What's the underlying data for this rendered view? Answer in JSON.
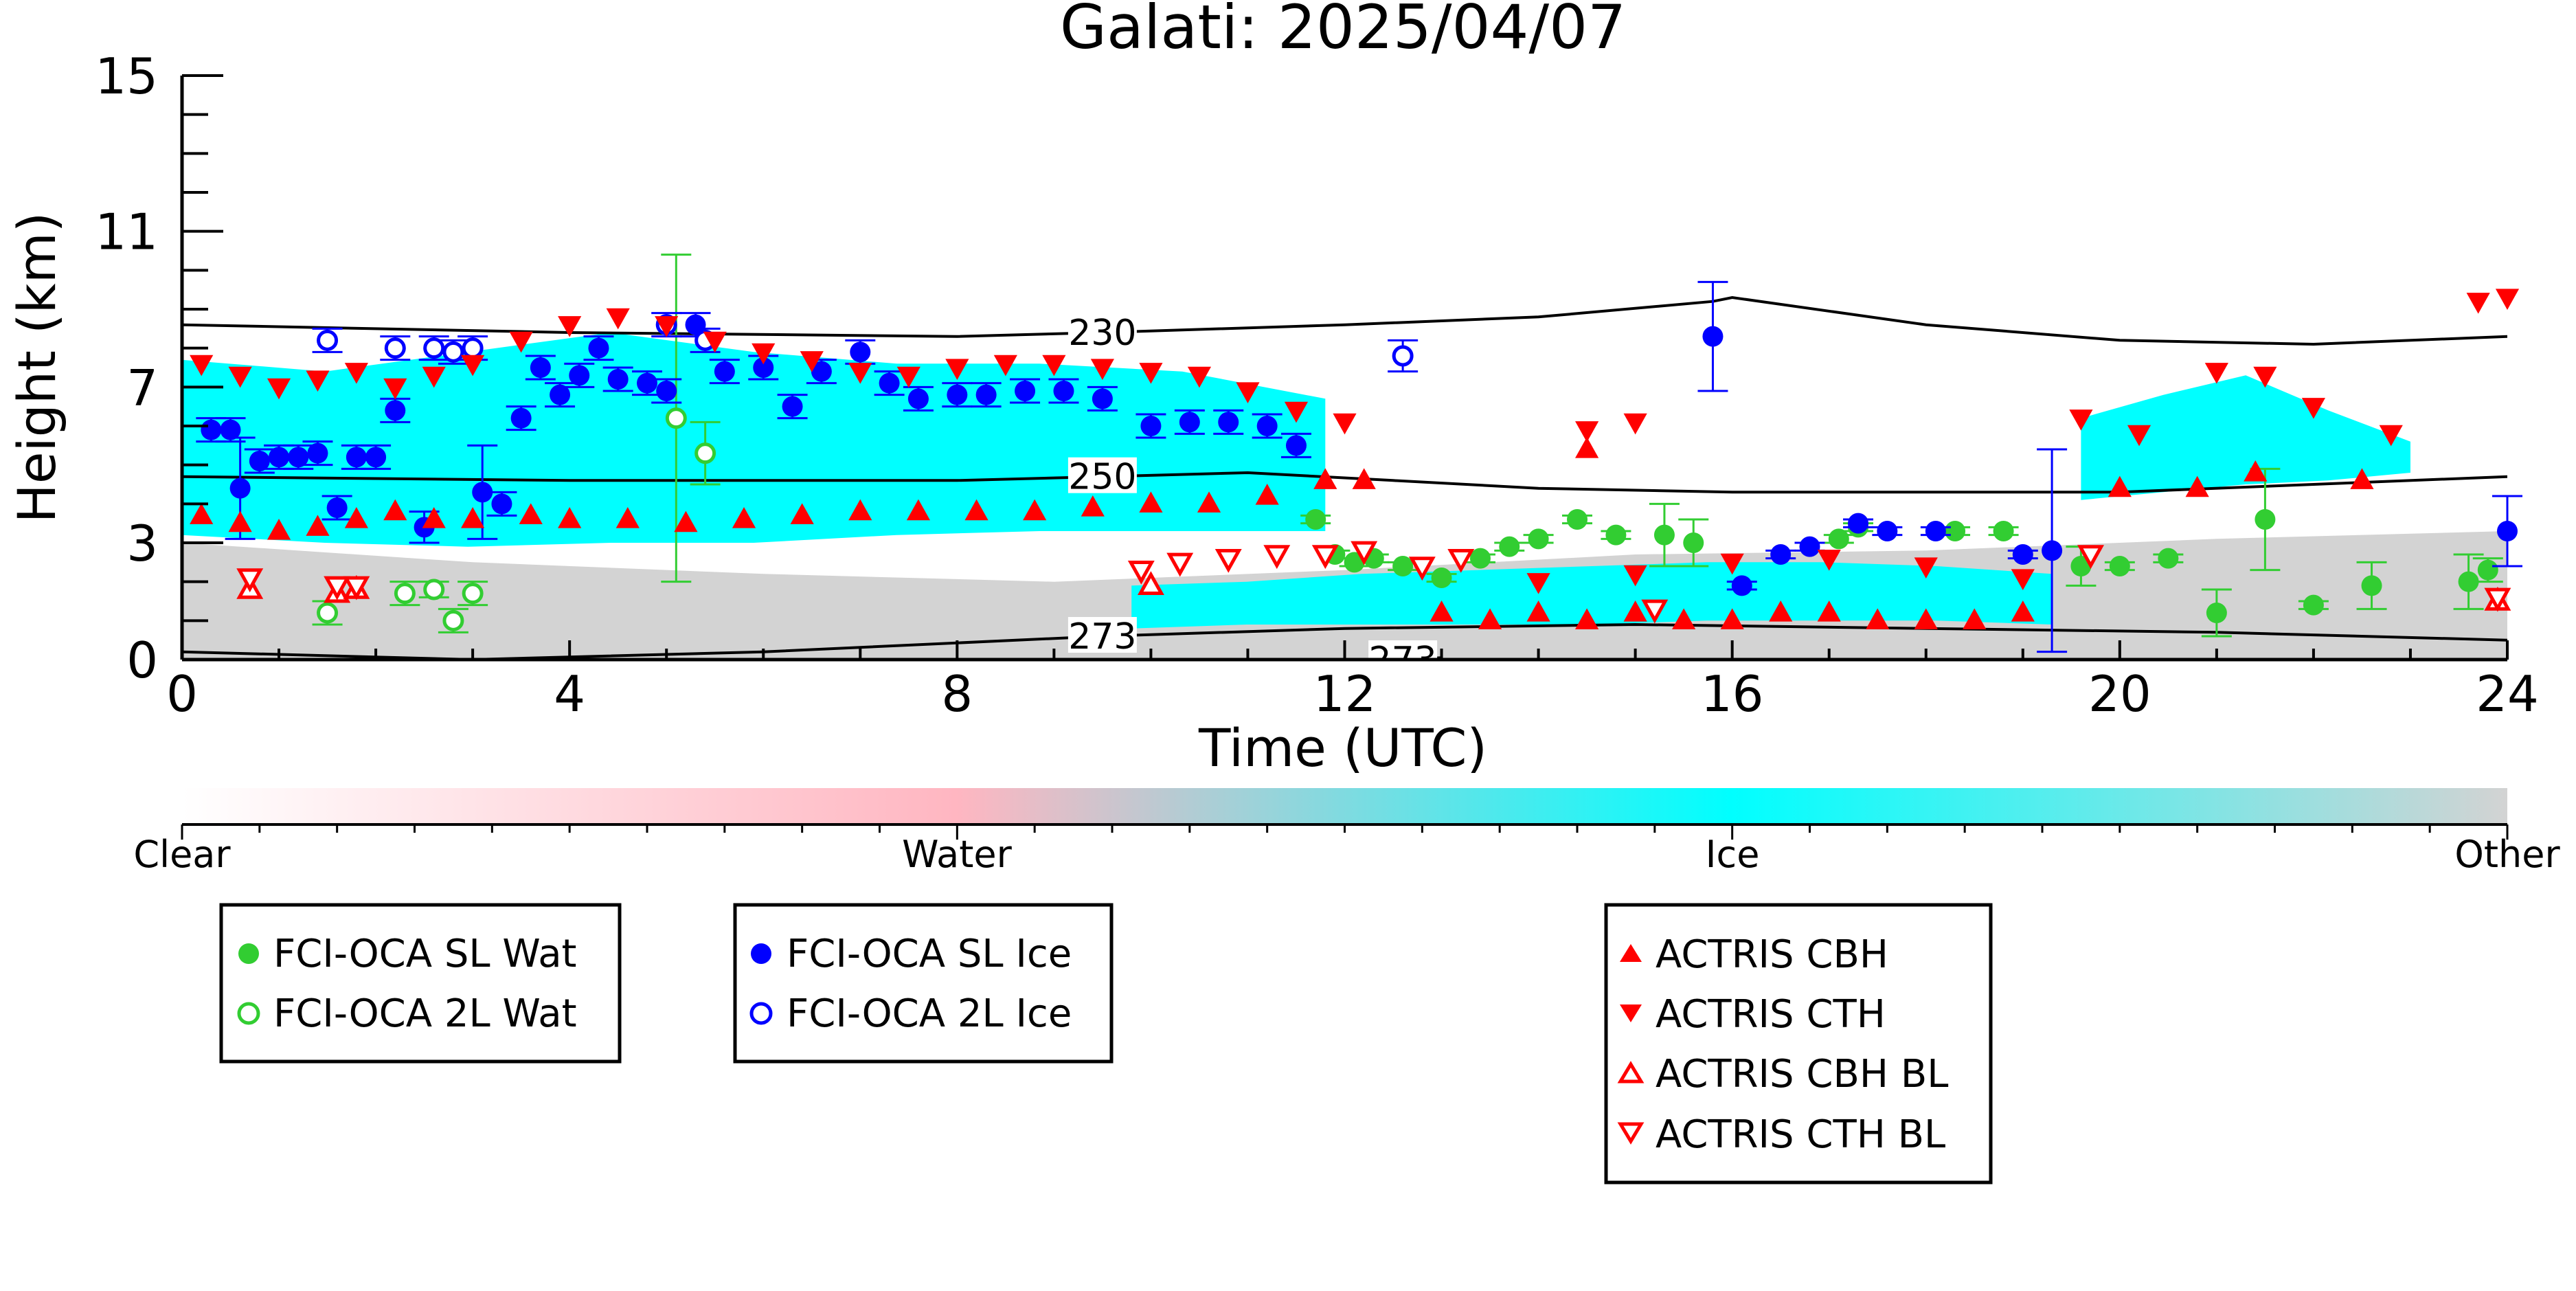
{
  "chart_data": {
    "type": "scatter",
    "title": "Galati: 2025/04/07",
    "xlabel": "Time (UTC)",
    "ylabel": "Height (km)",
    "xlim": [
      0,
      24
    ],
    "ylim": [
      0,
      15
    ],
    "x_ticks": [
      "0",
      "4",
      "8",
      "12",
      "16",
      "20",
      "24"
    ],
    "y_ticks": [
      "0",
      "3",
      "7",
      "11",
      "15"
    ],
    "y_tick_values": [
      0,
      3,
      7,
      11,
      15
    ],
    "background_classes": {
      "labels": [
        "Clear",
        "Water",
        "Ice",
        "Other"
      ],
      "colors": [
        "#ffffff",
        "#ffb6c1",
        "#00ffff",
        "#d3d3d3"
      ],
      "regions": [
        {
          "class": "Ice",
          "x": [
            0.0,
            11.8
          ],
          "y_bottom": [
            3.2,
            3.0,
            2.9,
            3.0,
            3.0,
            3.2,
            3.3,
            3.3,
            3.3
          ],
          "y_top": [
            7.7,
            7.4,
            7.9,
            8.4,
            7.9,
            7.6,
            7.6,
            7.4,
            6.7
          ]
        },
        {
          "class": "Ice",
          "x": [
            9.8,
            19.3
          ],
          "y_bottom": [
            0.8,
            0.9,
            0.9,
            0.9,
            0.9,
            1.0,
            1.0,
            1.0,
            0.9
          ],
          "y_top": [
            1.9,
            2.0,
            2.2,
            2.3,
            2.4,
            2.5,
            2.5,
            2.4,
            2.2
          ]
        },
        {
          "class": "Ice",
          "x": [
            19.6,
            23.0
          ],
          "y_bottom": [
            4.1,
            4.3,
            4.5,
            4.6,
            4.8
          ],
          "y_top": [
            6.2,
            6.8,
            7.3,
            6.4,
            5.6
          ]
        },
        {
          "class": "Other",
          "x": [
            0.0,
            24.0
          ],
          "y_bottom": [
            0.0,
            0.0,
            0.0,
            0.0,
            0.0,
            0.0,
            0.0,
            0.0,
            0.0
          ],
          "y_top": [
            3.0,
            2.5,
            2.2,
            2.0,
            2.3,
            2.7,
            2.8,
            3.1,
            3.3
          ]
        }
      ]
    },
    "isotherms": [
      {
        "label": "230",
        "x": [
          0,
          4,
          8,
          9.5,
          12,
          14,
          15.8,
          16,
          18,
          20,
          22,
          24
        ],
        "y": [
          8.6,
          8.4,
          8.3,
          8.4,
          8.6,
          8.8,
          9.2,
          9.3,
          8.6,
          8.2,
          8.1,
          8.3
        ],
        "label_x": 9.5
      },
      {
        "label": "250",
        "x": [
          0,
          4,
          8,
          9.5,
          11,
          12.5,
          14,
          16,
          18,
          20,
          22,
          24
        ],
        "y": [
          4.7,
          4.6,
          4.6,
          4.7,
          4.8,
          4.6,
          4.4,
          4.3,
          4.3,
          4.3,
          4.5,
          4.7
        ],
        "label_x": 9.5
      },
      {
        "label": "273",
        "x": [
          0,
          3,
          6,
          9.5,
          12,
          15,
          18,
          21,
          24
        ],
        "y": [
          0.2,
          0.0,
          0.2,
          0.6,
          0.8,
          0.9,
          0.8,
          0.7,
          0.5
        ],
        "label_x": 9.5
      },
      {
        "label": "273",
        "x": [
          12.6,
          13.0
        ],
        "y": [
          0.0,
          0.05
        ],
        "label_x": 12.6
      }
    ],
    "series": [
      {
        "name": "FCI-OCA SL Wat",
        "marker": "circle-filled",
        "color": "#32cd32",
        "points": [
          [
            11.7,
            3.6
          ],
          [
            11.9,
            2.7
          ],
          [
            12.1,
            2.5
          ],
          [
            12.3,
            2.6
          ],
          [
            12.6,
            2.4
          ],
          [
            13.0,
            2.1
          ],
          [
            13.4,
            2.6
          ],
          [
            13.7,
            2.9
          ],
          [
            14.0,
            3.1
          ],
          [
            14.4,
            3.6
          ],
          [
            14.8,
            3.2
          ],
          [
            15.3,
            3.2
          ],
          [
            15.6,
            3.0
          ],
          [
            17.1,
            3.1
          ],
          [
            17.3,
            3.4
          ],
          [
            18.3,
            3.3
          ],
          [
            18.8,
            3.3
          ],
          [
            19.6,
            2.4
          ],
          [
            20.0,
            2.4
          ],
          [
            20.5,
            2.6
          ],
          [
            21.0,
            1.2
          ],
          [
            21.5,
            3.6
          ],
          [
            22.0,
            1.4
          ],
          [
            22.6,
            1.9
          ],
          [
            23.6,
            2.0
          ],
          [
            23.8,
            2.3
          ]
        ],
        "err": [
          0.1,
          0.1,
          0.1,
          0.1,
          0.1,
          0.1,
          0.1,
          0.1,
          0.1,
          0.1,
          0.1,
          0.8,
          0.6,
          0.1,
          0.1,
          0.1,
          0.1,
          0.5,
          0.1,
          0.1,
          0.6,
          1.3,
          0.1,
          0.6,
          0.7,
          0.3
        ]
      },
      {
        "name": "FCI-OCA 2L Wat",
        "marker": "circle-open",
        "color": "#32cd32",
        "points": [
          [
            1.5,
            1.2
          ],
          [
            2.3,
            1.7
          ],
          [
            2.6,
            1.8
          ],
          [
            2.8,
            1.0
          ],
          [
            3.0,
            1.7
          ],
          [
            5.1,
            6.2
          ],
          [
            5.4,
            5.3
          ]
        ],
        "err": [
          0.3,
          0.3,
          0.2,
          0.3,
          0.3,
          4.2,
          0.8
        ]
      },
      {
        "name": "FCI-OCA SL Ice",
        "marker": "circle-filled",
        "color": "#0000ff",
        "points": [
          [
            0.3,
            5.9
          ],
          [
            0.5,
            5.9
          ],
          [
            0.6,
            4.4
          ],
          [
            0.8,
            5.1
          ],
          [
            1.0,
            5.2
          ],
          [
            1.2,
            5.2
          ],
          [
            1.4,
            5.3
          ],
          [
            1.6,
            3.9
          ],
          [
            1.8,
            5.2
          ],
          [
            2.0,
            5.2
          ],
          [
            2.2,
            6.4
          ],
          [
            2.5,
            3.4
          ],
          [
            3.1,
            4.3
          ],
          [
            3.3,
            4.0
          ],
          [
            3.5,
            6.2
          ],
          [
            3.7,
            7.5
          ],
          [
            3.9,
            6.8
          ],
          [
            4.1,
            7.3
          ],
          [
            4.3,
            8.0
          ],
          [
            4.5,
            7.2
          ],
          [
            4.8,
            7.1
          ],
          [
            5.0,
            6.9
          ],
          [
            5.3,
            8.6
          ],
          [
            5.6,
            7.4
          ],
          [
            6.0,
            7.5
          ],
          [
            6.3,
            6.5
          ],
          [
            6.6,
            7.4
          ],
          [
            7.0,
            7.9
          ],
          [
            7.3,
            7.1
          ],
          [
            7.6,
            6.7
          ],
          [
            8.0,
            6.8
          ],
          [
            8.3,
            6.8
          ],
          [
            8.7,
            6.9
          ],
          [
            9.1,
            6.9
          ],
          [
            9.5,
            6.7
          ],
          [
            10.0,
            6.0
          ],
          [
            10.4,
            6.1
          ],
          [
            10.8,
            6.1
          ],
          [
            11.2,
            6.0
          ],
          [
            11.5,
            5.5
          ],
          [
            15.8,
            8.3
          ],
          [
            16.1,
            1.9
          ],
          [
            16.5,
            2.7
          ],
          [
            16.8,
            2.9
          ],
          [
            17.3,
            3.5
          ],
          [
            17.6,
            3.3
          ],
          [
            18.1,
            3.3
          ],
          [
            19.0,
            2.7
          ],
          [
            19.3,
            2.8
          ],
          [
            24.0,
            3.3
          ]
        ],
        "err": [
          0.3,
          0.3,
          1.3,
          0.3,
          0.3,
          0.3,
          0.3,
          0.3,
          0.3,
          0.3,
          0.3,
          0.4,
          1.2,
          0.3,
          0.3,
          0.3,
          0.3,
          0.3,
          0.3,
          0.3,
          0.3,
          0.3,
          0.3,
          0.3,
          0.3,
          0.3,
          0.3,
          0.3,
          0.3,
          0.3,
          0.3,
          0.3,
          0.3,
          0.3,
          0.3,
          0.3,
          0.3,
          0.3,
          0.3,
          0.3,
          1.4,
          0.1,
          0.1,
          0.1,
          0.1,
          0.1,
          0.1,
          0.1,
          2.6,
          0.9
        ]
      },
      {
        "name": "FCI-OCA 2L Ice",
        "marker": "circle-open",
        "color": "#0000ff",
        "points": [
          [
            1.5,
            8.2
          ],
          [
            2.2,
            8.0
          ],
          [
            2.6,
            8.0
          ],
          [
            2.8,
            7.9
          ],
          [
            3.0,
            8.0
          ],
          [
            5.0,
            8.6
          ],
          [
            5.4,
            8.2
          ],
          [
            12.6,
            7.8
          ]
        ],
        "err": [
          0.3,
          0.3,
          0.3,
          0.3,
          0.3,
          0.3,
          0.3,
          0.4
        ]
      },
      {
        "name": "ACTRIS CBH",
        "marker": "triangle-up-filled",
        "color": "#ff0000",
        "points": [
          [
            0.2,
            3.7
          ],
          [
            0.6,
            3.5
          ],
          [
            1.0,
            3.3
          ],
          [
            1.4,
            3.4
          ],
          [
            1.8,
            3.6
          ],
          [
            2.2,
            3.8
          ],
          [
            2.6,
            3.6
          ],
          [
            3.0,
            3.6
          ],
          [
            3.6,
            3.7
          ],
          [
            4.0,
            3.6
          ],
          [
            4.6,
            3.6
          ],
          [
            5.2,
            3.5
          ],
          [
            5.8,
            3.6
          ],
          [
            6.4,
            3.7
          ],
          [
            7.0,
            3.8
          ],
          [
            7.6,
            3.8
          ],
          [
            8.2,
            3.8
          ],
          [
            8.8,
            3.8
          ],
          [
            9.4,
            3.9
          ],
          [
            10.0,
            4.0
          ],
          [
            10.6,
            4.0
          ],
          [
            11.2,
            4.2
          ],
          [
            11.8,
            4.6
          ],
          [
            12.2,
            4.6
          ],
          [
            13.0,
            1.2
          ],
          [
            13.5,
            1.0
          ],
          [
            14.0,
            1.2
          ],
          [
            14.5,
            1.0
          ],
          [
            15.0,
            1.2
          ],
          [
            15.5,
            1.0
          ],
          [
            16.0,
            1.0
          ],
          [
            16.5,
            1.2
          ],
          [
            17.0,
            1.2
          ],
          [
            17.5,
            1.0
          ],
          [
            18.0,
            1.0
          ],
          [
            18.5,
            1.0
          ],
          [
            19.0,
            1.2
          ],
          [
            14.5,
            5.4
          ],
          [
            20.0,
            4.4
          ],
          [
            20.8,
            4.4
          ],
          [
            21.4,
            4.8
          ],
          [
            22.5,
            4.6
          ]
        ]
      },
      {
        "name": "ACTRIS CTH",
        "marker": "triangle-down-filled",
        "color": "#ff0000",
        "points": [
          [
            0.2,
            7.6
          ],
          [
            0.6,
            7.3
          ],
          [
            1.0,
            7.0
          ],
          [
            1.4,
            7.2
          ],
          [
            1.8,
            7.4
          ],
          [
            2.2,
            7.0
          ],
          [
            2.6,
            7.3
          ],
          [
            3.0,
            7.6
          ],
          [
            3.5,
            8.2
          ],
          [
            4.0,
            8.6
          ],
          [
            4.5,
            8.8
          ],
          [
            5.0,
            8.6
          ],
          [
            5.5,
            8.2
          ],
          [
            6.0,
            7.9
          ],
          [
            6.5,
            7.7
          ],
          [
            7.0,
            7.4
          ],
          [
            7.5,
            7.3
          ],
          [
            8.0,
            7.5
          ],
          [
            8.5,
            7.6
          ],
          [
            9.0,
            7.6
          ],
          [
            9.5,
            7.5
          ],
          [
            10.0,
            7.4
          ],
          [
            10.5,
            7.3
          ],
          [
            11.0,
            6.9
          ],
          [
            11.5,
            6.4
          ],
          [
            12.0,
            6.1
          ],
          [
            14.5,
            5.9
          ],
          [
            15.0,
            6.1
          ],
          [
            14.0,
            2.0
          ],
          [
            15.0,
            2.2
          ],
          [
            16.0,
            2.5
          ],
          [
            17.0,
            2.6
          ],
          [
            18.0,
            2.4
          ],
          [
            19.0,
            2.1
          ],
          [
            19.6,
            6.2
          ],
          [
            20.2,
            5.8
          ],
          [
            21.0,
            7.4
          ],
          [
            21.5,
            7.3
          ],
          [
            22.0,
            6.5
          ],
          [
            22.8,
            5.8
          ],
          [
            23.7,
            9.2
          ],
          [
            24.0,
            9.3
          ]
        ]
      },
      {
        "name": "ACTRIS CBH BL",
        "marker": "triangle-up-open",
        "color": "#ff0000",
        "points": [
          [
            0.7,
            1.8
          ],
          [
            1.6,
            1.7
          ],
          [
            1.8,
            1.8
          ],
          [
            10.0,
            1.9
          ],
          [
            23.9,
            1.5
          ]
        ]
      },
      {
        "name": "ACTRIS CTH BL",
        "marker": "triangle-down-open",
        "color": "#ff0000",
        "points": [
          [
            0.7,
            2.1
          ],
          [
            1.6,
            1.9
          ],
          [
            1.8,
            1.9
          ],
          [
            9.9,
            2.3
          ],
          [
            10.3,
            2.5
          ],
          [
            10.8,
            2.6
          ],
          [
            11.3,
            2.7
          ],
          [
            11.8,
            2.7
          ],
          [
            12.2,
            2.8
          ],
          [
            12.8,
            2.4
          ],
          [
            13.2,
            2.6
          ],
          [
            15.2,
            1.3
          ],
          [
            19.7,
            2.7
          ],
          [
            23.9,
            1.6
          ]
        ]
      }
    ],
    "colorbar": {
      "labels": [
        "Clear",
        "Water",
        "Ice",
        "Other"
      ]
    },
    "legend_groups": [
      [
        "FCI-OCA SL Wat",
        "FCI-OCA 2L Wat"
      ],
      [
        "FCI-OCA SL Ice",
        "FCI-OCA 2L Ice"
      ],
      [
        "ACTRIS CBH",
        "ACTRIS CTH",
        "ACTRIS CBH BL",
        "ACTRIS CTH BL"
      ]
    ],
    "legend_placement": "below-plot",
    "grid": false
  }
}
